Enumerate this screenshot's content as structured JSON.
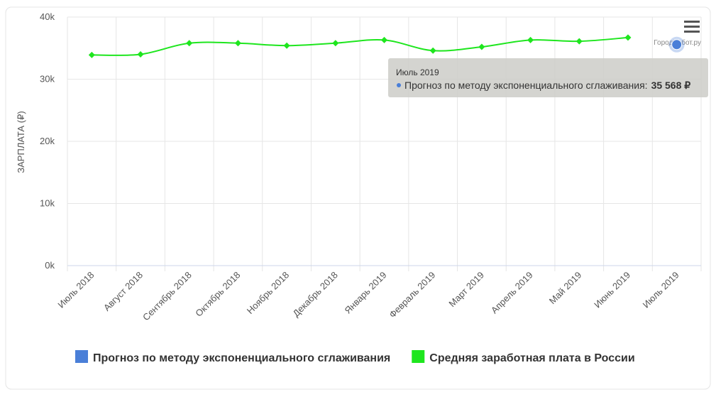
{
  "chart_data": {
    "type": "line",
    "y_label": "ЗАРПЛАТА (₽)",
    "credit": "ГородРабот.ру",
    "categories": [
      "Июль 2018",
      "Август 2018",
      "Сентябрь 2018",
      "Октябрь 2018",
      "Ноябрь 2018",
      "Декабрь 2018",
      "Январь 2019",
      "Февраль 2019",
      "Март 2019",
      "Апрель 2019",
      "Май 2019",
      "Июнь 2019",
      "Июль 2019"
    ],
    "series": [
      {
        "name": "Прогноз по методу экспоненциального сглаживания",
        "color": "#4a7fd8",
        "values": [
          null,
          null,
          null,
          null,
          null,
          null,
          null,
          null,
          null,
          null,
          null,
          null,
          35568
        ],
        "value_labels": [
          null,
          null,
          null,
          null,
          null,
          null,
          null,
          null,
          null,
          null,
          null,
          null,
          "35 568 ₽"
        ]
      },
      {
        "name": "Средняя заработная плата в России",
        "color": "#1ee61e",
        "values": [
          33900,
          34000,
          35800,
          35800,
          35400,
          35800,
          36300,
          34600,
          35200,
          36300,
          36100,
          36700,
          null
        ]
      }
    ],
    "tooltip_label": "Прогноз по методу экспоненциального сглаживания:",
    "ylim": [
      0,
      40000
    ],
    "yticks": [
      {
        "value": 0,
        "label": "0k"
      },
      {
        "value": 10000,
        "label": "10k"
      },
      {
        "value": 20000,
        "label": "20k"
      },
      {
        "value": 30000,
        "label": "30k"
      },
      {
        "value": 40000,
        "label": "40k"
      }
    ],
    "grid": true
  }
}
